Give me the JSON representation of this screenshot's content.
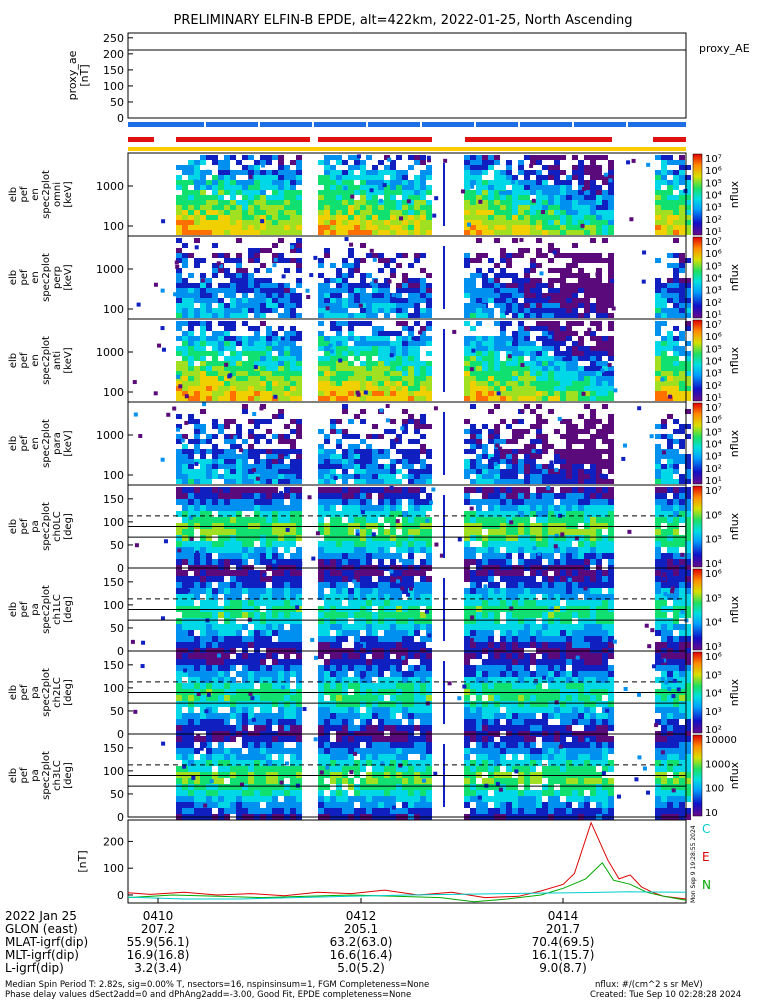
{
  "title": "PRELIMINARY ELFIN-B EPDE, alt=422km, 2022-01-25, North Ascending",
  "chart_data": [
    {
      "id": "proxy_ae",
      "type": "line",
      "ylabel": [
        "proxy_ae",
        "[nT]"
      ],
      "yticks": [
        "250",
        "200",
        "150",
        "100",
        "50",
        "0"
      ],
      "ylim": [
        0,
        265
      ],
      "legend": [
        "proxy_AE"
      ],
      "series": [
        {
          "name": "proxy_AE",
          "x": [
            0,
            1
          ],
          "values": [
            205,
            205
          ]
        }
      ]
    },
    {
      "id": "en1",
      "type": "heatmap",
      "ylabel": [
        "elb",
        "pef",
        "en",
        "spec2plot",
        "omni",
        "[keV]"
      ],
      "yticks": [
        "1000",
        "100"
      ],
      "scale": "log",
      "colorbar": {
        "label": "nflux",
        "ticks": [
          "10⁷",
          "10⁶",
          "10⁵",
          "10⁴",
          "10³",
          "10²",
          "10¹"
        ]
      }
    },
    {
      "id": "en2",
      "type": "heatmap",
      "ylabel": [
        "elb",
        "pef",
        "en",
        "spec2plot",
        "perp",
        "[keV]"
      ],
      "yticks": [
        "1000",
        "100"
      ],
      "scale": "log",
      "colorbar": {
        "label": "nflux",
        "ticks": [
          "10⁷",
          "10⁶",
          "10⁵",
          "10⁴",
          "10³",
          "10²",
          "10¹"
        ]
      }
    },
    {
      "id": "en3",
      "type": "heatmap",
      "ylabel": [
        "elb",
        "pef",
        "en",
        "spec2plot",
        "anti",
        "[keV]"
      ],
      "yticks": [
        "1000",
        "100"
      ],
      "scale": "log",
      "colorbar": {
        "label": "nflux",
        "ticks": [
          "10⁷",
          "10⁶",
          "10⁵",
          "10⁴",
          "10³",
          "10²",
          "10¹"
        ]
      }
    },
    {
      "id": "en4",
      "type": "heatmap",
      "ylabel": [
        "elb",
        "pef",
        "en",
        "spec2plot",
        "para",
        "[keV]"
      ],
      "yticks": [
        "1000",
        "100"
      ],
      "scale": "log",
      "colorbar": {
        "label": "nflux",
        "ticks": [
          "10⁷",
          "10⁶",
          "10⁵",
          "10⁴",
          "10³",
          "10²",
          "10¹"
        ]
      }
    },
    {
      "id": "pa0",
      "type": "heatmap",
      "ylabel": [
        "elb",
        "pef",
        "pa",
        "spec2plot",
        "ch0LC",
        "[deg]"
      ],
      "yticks": [
        "150",
        "100",
        "50",
        "0"
      ],
      "ylim": [
        0,
        180
      ],
      "colorbar": {
        "label": "nflux",
        "ticks": [
          "10⁷",
          "10⁶",
          "10⁵",
          "10⁴"
        ]
      }
    },
    {
      "id": "pa1",
      "type": "heatmap",
      "ylabel": [
        "elb",
        "pef",
        "pa",
        "spec2plot",
        "ch1LC",
        "[deg]"
      ],
      "yticks": [
        "150",
        "100",
        "50",
        "0"
      ],
      "ylim": [
        0,
        180
      ],
      "colorbar": {
        "label": "nflux",
        "ticks": [
          "10⁶",
          "10⁵",
          "10⁴",
          "10³"
        ]
      }
    },
    {
      "id": "pa2",
      "type": "heatmap",
      "ylabel": [
        "elb",
        "pef",
        "pa",
        "spec2plot",
        "ch2LC",
        "[deg]"
      ],
      "yticks": [
        "150",
        "100",
        "50",
        "0"
      ],
      "ylim": [
        0,
        180
      ],
      "colorbar": {
        "label": "nflux",
        "ticks": [
          "10⁶",
          "10⁵",
          "10⁴",
          "10³",
          "10²"
        ]
      }
    },
    {
      "id": "pa3",
      "type": "heatmap",
      "ylabel": [
        "elb",
        "pef",
        "pa",
        "spec2plot",
        "ch3LC",
        "[deg]"
      ],
      "yticks": [
        "150",
        "100",
        "50",
        "0"
      ],
      "ylim": [
        0,
        180
      ],
      "colorbar": {
        "label": "nflux",
        "ticks": [
          "10000",
          "1000",
          "100",
          "10"
        ]
      }
    },
    {
      "id": "bfield",
      "type": "line",
      "ylabel": [
        "[nT]"
      ],
      "yticks": [
        "200",
        "100",
        "0"
      ],
      "ylim": [
        -30,
        280
      ],
      "legend": [
        "C",
        "E",
        "N"
      ],
      "side_text": "Mon Sep  9 19:28:55 2024",
      "series": [
        {
          "name": "E",
          "color": "#dd0000",
          "x": [
            0,
            0.04,
            0.1,
            0.16,
            0.22,
            0.28,
            0.34,
            0.4,
            0.46,
            0.52,
            0.58,
            0.64,
            0.7,
            0.74,
            0.78,
            0.8,
            0.83,
            0.86,
            0.88,
            0.9,
            0.92,
            0.94,
            0.96,
            1.0
          ],
          "values": [
            8,
            2,
            10,
            0,
            5,
            -3,
            10,
            5,
            18,
            0,
            10,
            -10,
            -5,
            15,
            40,
            80,
            270,
            130,
            60,
            75,
            30,
            10,
            -5,
            -15
          ]
        },
        {
          "name": "N",
          "color": "#00aa00",
          "x": [
            0,
            0.08,
            0.16,
            0.24,
            0.32,
            0.4,
            0.48,
            0.56,
            0.62,
            0.68,
            0.74,
            0.78,
            0.82,
            0.85,
            0.87,
            0.9,
            0.93,
            0.96,
            1.0
          ],
          "values": [
            -10,
            0,
            -5,
            -10,
            -5,
            0,
            -5,
            -10,
            -25,
            -15,
            0,
            25,
            60,
            120,
            55,
            40,
            10,
            -5,
            -20
          ]
        },
        {
          "name": "C",
          "color": "#00cccc",
          "x": [
            0,
            0.1,
            0.2,
            0.3,
            0.4,
            0.5,
            0.6,
            0.7,
            0.8,
            0.9,
            1.0
          ],
          "values": [
            -8,
            -15,
            -15,
            -10,
            -5,
            0,
            3,
            6,
            8,
            12,
            10
          ]
        }
      ]
    }
  ],
  "time_axis": {
    "rows": [
      {
        "label": "2022 Jan 25",
        "values": [
          "0410",
          "0412",
          "0414"
        ]
      },
      {
        "label": "GLON (east)",
        "values": [
          "207.2",
          "205.1",
          "201.7"
        ]
      },
      {
        "label": "MLAT-igrf(dip)",
        "values": [
          "55.9(56.1)",
          "63.2(63.0)",
          "70.4(69.5)"
        ]
      },
      {
        "label": "MLT-igrf(dip)",
        "values": [
          "16.9(16.8)",
          "16.6(16.4)",
          "16.1(15.7)"
        ]
      },
      {
        "label": "L-igrf(dip)",
        "values": [
          "3.2(3.4)",
          "5.0(5.2)",
          "9.0(8.7)"
        ]
      }
    ]
  },
  "footer": {
    "line1": "Median Spin Period T: 2.82s, sig=0.00% T, nsectors=16, nspinsinsum=1, FGM Completeness=None",
    "line2": "Phase delay values dSect2add=0 and dPhAng2add=-3.00, Good Fit, EPDE completeness=None",
    "units": "nflux: #/(cm^2 s sr MeV)",
    "created": "Created: Tue Sep 10 02:28:28 2024"
  },
  "colors": {
    "blue_bar": "#1e6ee6",
    "red_bar": "#e01010",
    "yellow_bar": "#ffcc00"
  }
}
